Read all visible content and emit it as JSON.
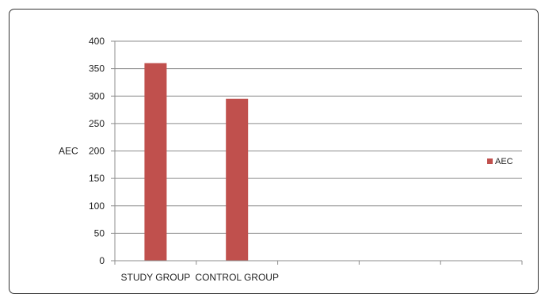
{
  "chart_data": {
    "type": "bar",
    "categories": [
      "STUDY GROUP",
      "CONTROL GROUP",
      "",
      "",
      ""
    ],
    "series": [
      {
        "name": "AEC",
        "values": [
          360,
          295,
          null,
          null,
          null
        ],
        "color": "#c0504d"
      }
    ],
    "xlabel": "",
    "ylabel": "AEC",
    "ylim": [
      0,
      400
    ],
    "yticks": [
      0,
      50,
      100,
      150,
      200,
      250,
      300,
      350,
      400
    ],
    "grid": true,
    "legend": "right"
  }
}
